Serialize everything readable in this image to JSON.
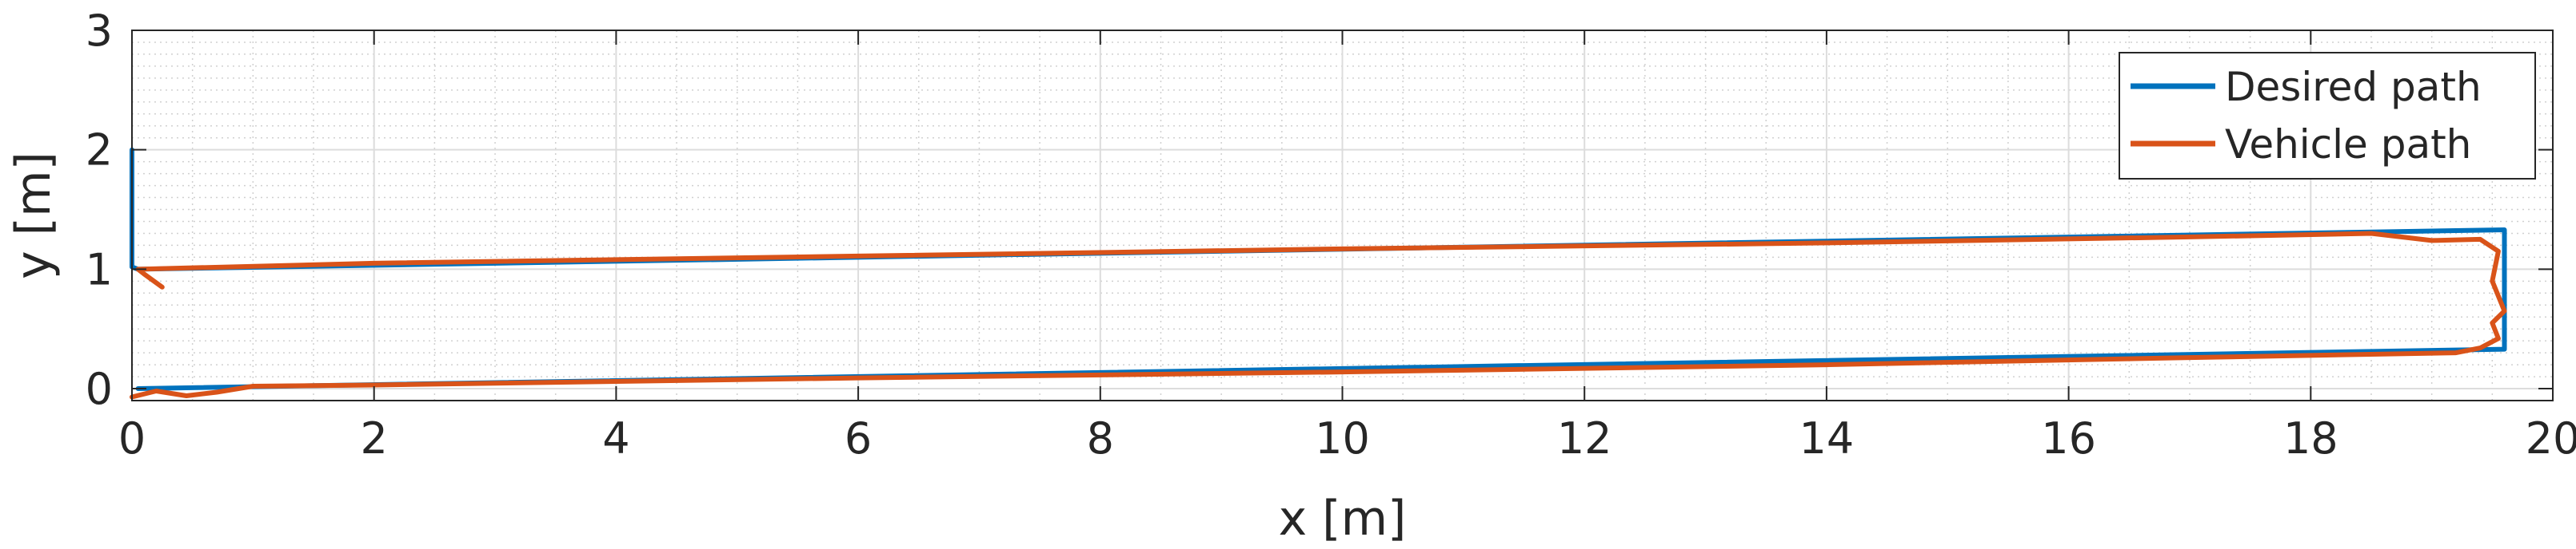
{
  "chart_data": {
    "type": "line",
    "title": "",
    "xlabel": "x [m]",
    "ylabel": "y [m]",
    "xlim": [
      0,
      20
    ],
    "ylim": [
      -0.1,
      3
    ],
    "x_ticks": [
      "0",
      "2",
      "4",
      "6",
      "8",
      "10",
      "12",
      "14",
      "16",
      "18",
      "20"
    ],
    "y_ticks": [
      "0",
      "1",
      "2",
      "3"
    ],
    "grid": true,
    "minor_grid": true,
    "legend_position": "top-right",
    "series": [
      {
        "name": "Desired path",
        "color": "#0072BD",
        "x": [
          0,
          0,
          0.05,
          19.6,
          19.6,
          0.05,
          0.05
        ],
        "y": [
          2.0,
          1.02,
          1.0,
          1.33,
          0.33,
          0.0,
          0.0
        ]
      },
      {
        "name": "Vehicle path",
        "color": "#D95319",
        "x": [
          0.25,
          0.1,
          0.05,
          2,
          6,
          10,
          14,
          17,
          18.5,
          19.0,
          19.4,
          19.55,
          19.5,
          19.6,
          19.5,
          19.55,
          19.4,
          19.2,
          17,
          14,
          10,
          6,
          2,
          1.0,
          0.7,
          0.45,
          0.2,
          0.0
        ],
        "y": [
          0.85,
          0.96,
          1.0,
          1.05,
          1.11,
          1.17,
          1.22,
          1.27,
          1.3,
          1.24,
          1.25,
          1.15,
          0.9,
          0.65,
          0.55,
          0.42,
          0.34,
          0.3,
          0.26,
          0.2,
          0.14,
          0.09,
          0.03,
          0.02,
          -0.03,
          -0.06,
          -0.02,
          -0.07
        ]
      }
    ]
  }
}
